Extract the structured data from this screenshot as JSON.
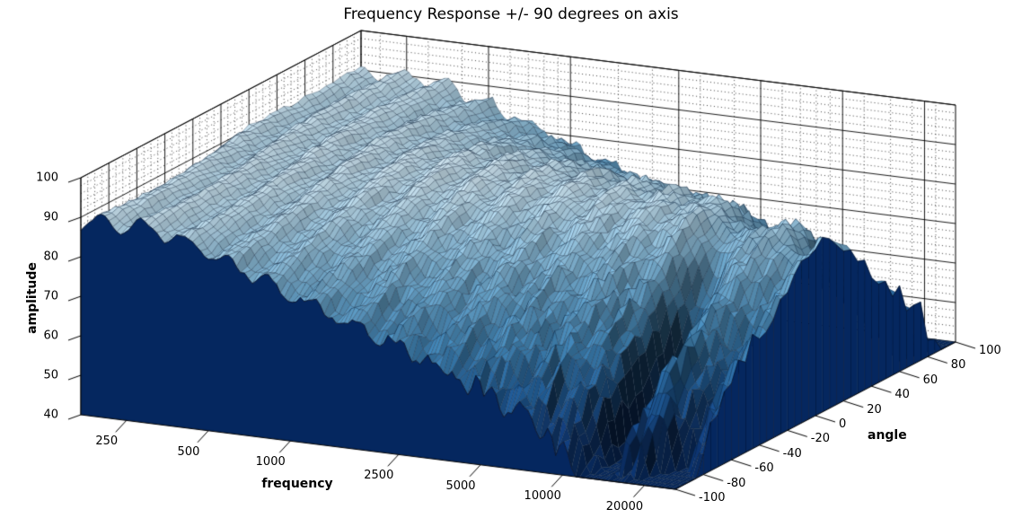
{
  "chart_data": {
    "type": "surface",
    "title": "Frequency Response +/- 90 degrees on axis",
    "xlabel": "frequency",
    "ylabel": "angle",
    "zlabel": "amplitude",
    "x_axis": {
      "scale": "log",
      "min": 170,
      "max": 26000,
      "ticks": [
        250,
        500,
        1000,
        2500,
        5000,
        10000,
        20000
      ],
      "minor_ticks": [
        200,
        300,
        400,
        600,
        700,
        800,
        900,
        1500,
        2000,
        3000,
        4000,
        6000,
        7000,
        8000,
        9000,
        12000,
        15000,
        18000,
        22000
      ]
    },
    "y_axis": {
      "min": -100,
      "max": 100,
      "ticks": [
        -100,
        -80,
        -60,
        -40,
        -20,
        0,
        20,
        40,
        60,
        80,
        100
      ],
      "minor_step": 5
    },
    "z_axis": {
      "min": 40,
      "max": 100,
      "ticks": [
        40,
        50,
        60,
        70,
        80,
        90,
        100
      ],
      "minor_step": 2
    },
    "grid": {
      "back_walls": true,
      "major_style": "solid",
      "minor_style": "dotted"
    },
    "legend": "none",
    "sample_data": {
      "frequencies_hz": [
        250,
        500,
        1000,
        2000,
        4000,
        8000,
        12000,
        16000,
        20000
      ],
      "series": [
        {
          "angle_deg": -90,
          "amplitude": [
            87,
            86,
            81,
            78,
            72,
            64,
            44,
            56,
            48
          ]
        },
        {
          "angle_deg": -45,
          "amplitude": [
            88,
            88,
            87,
            85,
            80,
            73,
            55,
            68,
            62
          ]
        },
        {
          "angle_deg": 0,
          "amplitude": [
            89,
            89,
            90,
            89,
            87,
            84,
            81,
            80,
            77
          ]
        },
        {
          "angle_deg": 45,
          "amplitude": [
            88,
            88,
            87,
            84,
            81,
            74,
            68,
            66,
            60
          ]
        },
        {
          "angle_deg": 90,
          "amplitude": [
            87,
            86,
            82,
            77,
            71,
            63,
            58,
            54,
            47
          ]
        }
      ]
    },
    "surface_model": {
      "angle_step": 5,
      "freq_samples": 150,
      "base": 87,
      "lf_bump": {
        "center": 0.1,
        "width": 0.18,
        "gain": 2.5
      },
      "ripple": {
        "gain": 2.0,
        "cycles": 14,
        "decay": 0.5,
        "angle_phase": 2.2
      },
      "plateau": {
        "center": 0.4,
        "width": 0.18,
        "gain": 2.2
      },
      "rolloff": {
        "gain": 52,
        "start": 0.1,
        "exp_t": 1.35,
        "exp_m": 2.1
      },
      "droop": {
        "start": 0.55,
        "gain": 7
      },
      "lobes": {
        "gain": 3.2,
        "cycles": 1.3,
        "phase": 1.1
      },
      "notch1": {
        "center": 0.862,
        "width": 0.032,
        "depth": 30,
        "u_center": -0.55,
        "u_width": 0.42,
        "spill": 0.25,
        "u2_center": 0.4,
        "u2_width": 0.3
      },
      "notch2": {
        "center": 0.965,
        "width": 0.026,
        "depth": 22
      },
      "wiggle": {
        "cycles": 26,
        "base": 0.35,
        "hf": 3.0
      },
      "hash_gain": 2.2,
      "asym": 1.3
    },
    "projection": {
      "origin": [
        90,
        462
      ],
      "freq_vec": [
        662,
        83
      ],
      "angle_vec": [
        312,
        -164
      ],
      "z_vec": [
        0,
        -264
      ]
    },
    "colors": {
      "background": "#ffffff",
      "curtain": "#05275f",
      "curtain_stripe": "#02102c",
      "mesh_line": "rgba(15,32,58,0.5)",
      "grid_major": "#000000",
      "grid_minor": "#444444",
      "axis_edge": "#000000",
      "colormap": [
        [
          0.0,
          "#07285c"
        ],
        [
          0.15,
          "#123c78"
        ],
        [
          0.3,
          "#205a92"
        ],
        [
          0.45,
          "#3e7fae"
        ],
        [
          0.6,
          "#659fc4"
        ],
        [
          0.72,
          "#8fbdd8"
        ],
        [
          0.82,
          "#bad8e8"
        ],
        [
          0.92,
          "#e2eef5"
        ],
        [
          1.0,
          "#f2f7fa"
        ]
      ]
    }
  }
}
